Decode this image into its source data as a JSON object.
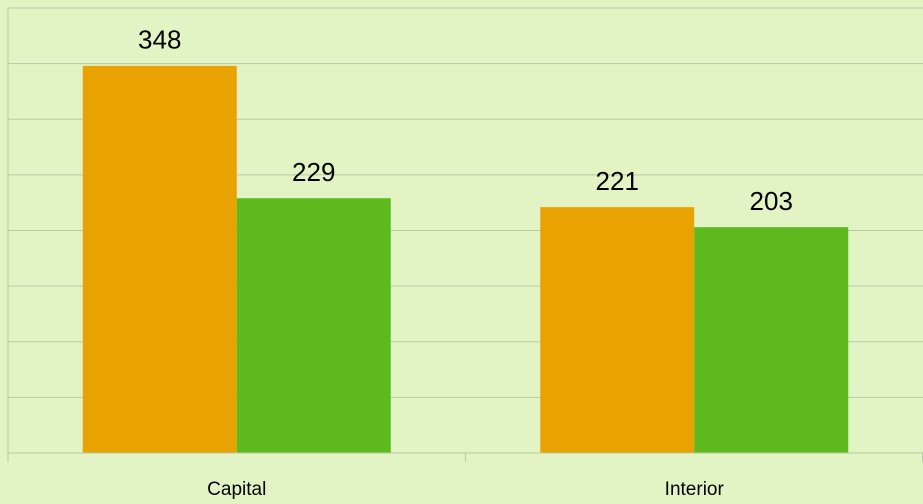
{
  "chart_data": {
    "type": "bar",
    "categories": [
      "Capital",
      "Interior"
    ],
    "series": [
      {
        "color": "#e8a202",
        "values": [
          348,
          221
        ]
      },
      {
        "color": "#5eb91e",
        "values": [
          229,
          203
        ]
      }
    ],
    "ylim": [
      0,
      400
    ],
    "yticks": [
      0,
      50,
      100,
      150,
      200,
      250,
      300,
      350,
      400
    ],
    "grid": true
  }
}
